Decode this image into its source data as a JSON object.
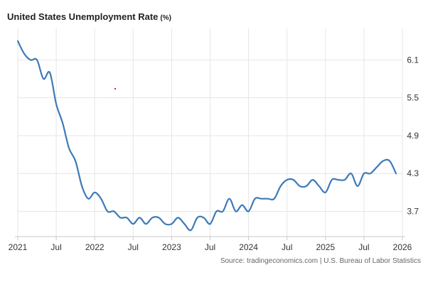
{
  "header": {
    "title": "United States Unemployment Rate",
    "unit": "(%)"
  },
  "source": "Source: tradingeconomics.com | U.S. Bureau of Labor Statistics",
  "colors": {
    "line": "#3d7ab8",
    "grid": "#e6e6e6",
    "axis": "#c8c8c8",
    "marker": "#e8173e"
  },
  "chart_data": {
    "type": "line",
    "title": "United States Unemployment Rate (%)",
    "xlabel": "",
    "ylabel": "",
    "x_range": [
      "2021-01",
      "2026-01"
    ],
    "ylim": [
      3.3,
      6.6
    ],
    "y_ticks": [
      3.7,
      4.3,
      4.9,
      5.5,
      6.1
    ],
    "x_tick_labels": [
      {
        "label": "2021",
        "x": "2021-01"
      },
      {
        "label": "Jul",
        "x": "2021-07"
      },
      {
        "label": "2022",
        "x": "2022-01"
      },
      {
        "label": "Jul",
        "x": "2022-07"
      },
      {
        "label": "2023",
        "x": "2023-01"
      },
      {
        "label": "Jul",
        "x": "2023-07"
      },
      {
        "label": "2024",
        "x": "2024-01"
      },
      {
        "label": "Jul",
        "x": "2024-07"
      },
      {
        "label": "2025",
        "x": "2025-01"
      },
      {
        "label": "Jul",
        "x": "2025-07"
      },
      {
        "label": "2026",
        "x": "2026-01"
      }
    ],
    "grid": "vertical at x ticks, horizontal at y ticks",
    "y_axis_position": "right",
    "series": [
      {
        "x": [
          "2021-01",
          "2021-02",
          "2021-03",
          "2021-04",
          "2021-05",
          "2021-06",
          "2021-07",
          "2021-08",
          "2021-09",
          "2021-10",
          "2021-11",
          "2021-12",
          "2022-01",
          "2022-02",
          "2022-03",
          "2022-04",
          "2022-05",
          "2022-06",
          "2022-07",
          "2022-08",
          "2022-09",
          "2022-10",
          "2022-11",
          "2022-12",
          "2023-01",
          "2023-02",
          "2023-03",
          "2023-04",
          "2023-05",
          "2023-06",
          "2023-07",
          "2023-08",
          "2023-09",
          "2023-10",
          "2023-11",
          "2023-12",
          "2024-01",
          "2024-02",
          "2024-03",
          "2024-04",
          "2024-05",
          "2024-06",
          "2024-07",
          "2024-08",
          "2024-09",
          "2024-10",
          "2024-11",
          "2024-12",
          "2025-01",
          "2025-02",
          "2025-03",
          "2025-04",
          "2025-05",
          "2025-06",
          "2025-07",
          "2025-08",
          "2025-09",
          "2025-10",
          "2025-11",
          "2025-12"
        ],
        "values": [
          6.4,
          6.2,
          6.1,
          6.1,
          5.8,
          5.9,
          5.4,
          5.1,
          4.7,
          4.5,
          4.1,
          3.9,
          4.0,
          3.9,
          3.7,
          3.7,
          3.6,
          3.6,
          3.5,
          3.6,
          3.5,
          3.6,
          3.6,
          3.5,
          3.5,
          3.6,
          3.5,
          3.4,
          3.6,
          3.6,
          3.5,
          3.7,
          3.7,
          3.9,
          3.7,
          3.8,
          3.7,
          3.9,
          3.9,
          3.9,
          3.9,
          4.1,
          4.2,
          4.2,
          4.1,
          4.1,
          4.2,
          4.1,
          4.0,
          4.2,
          4.2,
          4.2,
          4.3,
          4.1,
          4.3,
          4.3,
          4.4,
          4.5,
          4.5,
          4.3
        ]
      }
    ]
  }
}
